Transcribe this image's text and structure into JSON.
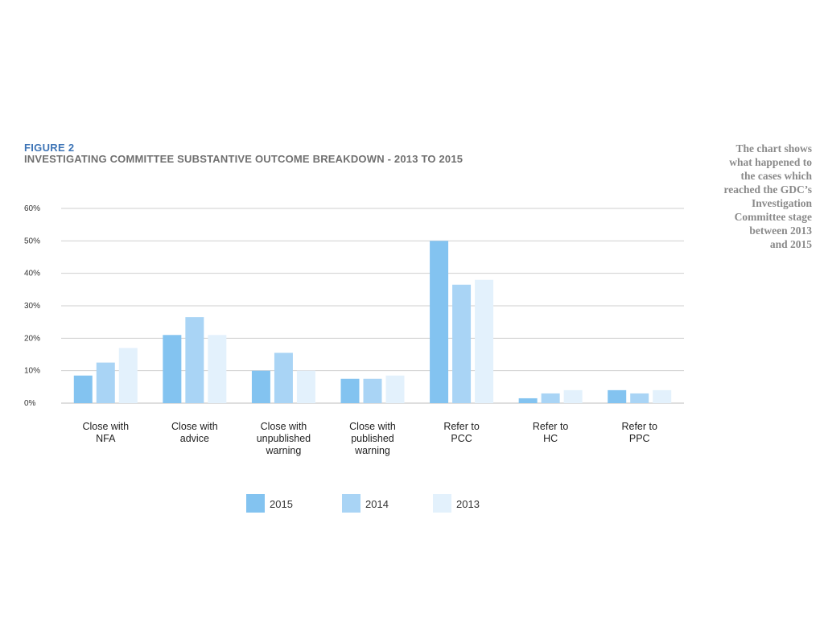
{
  "figure": {
    "label": "FIGURE 2",
    "title": "INVESTIGATING COMMITTEE SUBSTANTIVE OUTCOME BREAKDOWN - 2013 TO 2015"
  },
  "side_note": "The chart shows\nwhat happened to\nthe cases which\nreached the GDC’s\nInvestigation\nCommittee stage\nbetween 2013\nand 2015",
  "chart_data": {
    "type": "bar",
    "title": "INVESTIGATING COMMITTEE SUBSTANTIVE OUTCOME BREAKDOWN - 2013 TO 2015",
    "categories": [
      [
        "Close with",
        "NFA"
      ],
      [
        "Close with",
        "advice"
      ],
      [
        "Close with",
        "unpublished",
        "warning"
      ],
      [
        "Close with",
        "published",
        "warning"
      ],
      [
        "Refer to",
        "PCC"
      ],
      [
        "Refer to",
        "HC"
      ],
      [
        "Refer to",
        "PPC"
      ]
    ],
    "series": [
      {
        "name": "2015",
        "color": "#83c3f0",
        "values": [
          8.5,
          21,
          10,
          7.5,
          50,
          1.5,
          4
        ]
      },
      {
        "name": "2014",
        "color": "#a9d4f5",
        "values": [
          12.5,
          26.5,
          15.5,
          7.5,
          36.5,
          3,
          3
        ]
      },
      {
        "name": "2013",
        "color": "#e3f1fc",
        "values": [
          17,
          21,
          10,
          8.5,
          38,
          4,
          4
        ]
      }
    ],
    "ylim": [
      0,
      60
    ],
    "yticks": [
      0,
      10,
      20,
      30,
      40,
      50,
      60
    ],
    "ytick_labels": [
      "0%",
      "10%",
      "20%",
      "30%",
      "40%",
      "50%",
      "60%"
    ],
    "grid": true,
    "legend": "bottom-center",
    "xlabel": "",
    "ylabel": ""
  }
}
